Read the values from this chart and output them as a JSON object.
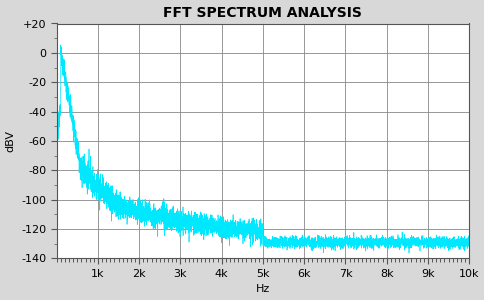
{
  "title": "FFT SPECTRUM ANALYSIS",
  "xlabel": "Hz",
  "ylabel": "dBV",
  "xlim": [
    0,
    10000
  ],
  "ylim": [
    -140,
    20
  ],
  "yticks": [
    20,
    0,
    -20,
    -40,
    -60,
    -80,
    -100,
    -120,
    -140
  ],
  "ytick_labels": [
    "+20",
    "0",
    "-20",
    "-40",
    "-60",
    "-80",
    "-100",
    "-120",
    "-140"
  ],
  "xticks": [
    1000,
    2000,
    3000,
    4000,
    5000,
    6000,
    7000,
    8000,
    9000,
    10000
  ],
  "xticklabels": [
    "1k",
    "2k",
    "3k",
    "4k",
    "5k",
    "6k",
    "7k",
    "8k",
    "9k",
    "10k"
  ],
  "line_color": "#00E8FF",
  "plot_bg_color": "#FFFFFF",
  "fig_bg_color": "#D8D8D8",
  "grid_color": "#888888",
  "spine_color": "#555555",
  "title_fontsize": 10,
  "label_fontsize": 8,
  "tick_fontsize": 8
}
